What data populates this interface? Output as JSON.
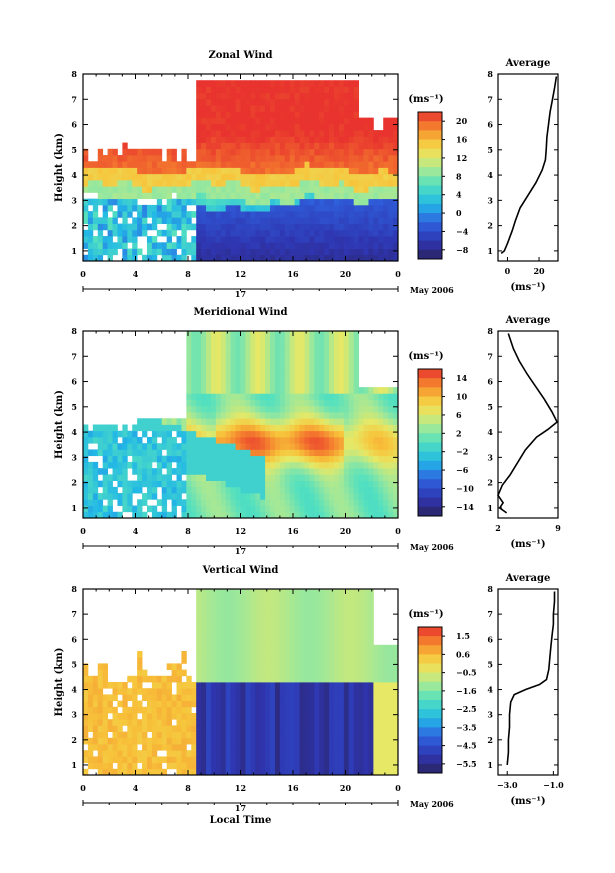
{
  "chart_data": [
    {
      "type": "heatmap",
      "title": "Zonal Wind",
      "ylabel": "Height (km)",
      "xlabel": "",
      "x_ticks": [
        "0",
        "4",
        "8",
        "12",
        "16",
        "20",
        "0"
      ],
      "y_ticks": [
        "1",
        "2",
        "3",
        "4",
        "5",
        "6",
        "7",
        "8"
      ],
      "xlim": [
        0,
        24
      ],
      "ylim": [
        0.6,
        8
      ],
      "date_row": {
        "day": "17",
        "month": "May 2006"
      },
      "colorbar": {
        "unit": "(ms⁻¹)",
        "labels": [
          "20",
          "16",
          "12",
          "8",
          "4",
          "0",
          "−4",
          "−8"
        ],
        "range": [
          -10,
          22
        ]
      },
      "average_profile": {
        "title": "Average",
        "xlabel": "(ms⁻¹)",
        "x_ticks": [
          "0",
          "20"
        ],
        "xlim": [
          -6,
          32
        ],
        "heights": [
          0.9,
          1.0,
          1.3,
          1.8,
          2.2,
          2.7,
          3.2,
          3.7,
          4.2,
          4.6,
          5.0,
          5.5,
          6.0,
          6.5,
          7.0,
          7.5,
          7.9
        ],
        "values": [
          -4,
          -2,
          0,
          3,
          5,
          8,
          13,
          18,
          22,
          24,
          24.5,
          25,
          26,
          27,
          28.5,
          30,
          31
        ]
      }
    },
    {
      "type": "heatmap",
      "title": "Meridional Wind",
      "ylabel": "Height (km)",
      "xlabel": "",
      "x_ticks": [
        "0",
        "4",
        "8",
        "12",
        "16",
        "20",
        "0"
      ],
      "y_ticks": [
        "1",
        "2",
        "3",
        "4",
        "5",
        "6",
        "7",
        "8"
      ],
      "xlim": [
        0,
        24
      ],
      "ylim": [
        0.6,
        8
      ],
      "date_row": {
        "day": "17",
        "month": "May 2006"
      },
      "colorbar": {
        "unit": "(ms⁻¹)",
        "labels": [
          "14",
          "10",
          "6",
          "2",
          "−2",
          "−6",
          "−10",
          "−14"
        ],
        "range": [
          -16,
          16
        ]
      },
      "average_profile": {
        "title": "Average",
        "xlabel": "(ms⁻¹)",
        "x_ticks": [
          "2",
          "9"
        ],
        "xlim": [
          2,
          9
        ],
        "heights": [
          0.8,
          1.0,
          1.2,
          1.5,
          1.9,
          2.3,
          2.8,
          3.3,
          3.8,
          4.1,
          4.4,
          4.8,
          5.3,
          5.8,
          6.3,
          6.8,
          7.3,
          7.9
        ],
        "values": [
          3.0,
          2.2,
          2.6,
          2.0,
          2.5,
          3.4,
          4.3,
          5.2,
          6.5,
          7.8,
          8.9,
          8.3,
          7.4,
          6.4,
          5.4,
          4.5,
          3.8,
          3.2
        ]
      }
    },
    {
      "type": "heatmap",
      "title": "Vertical Wind",
      "ylabel": "Height (km)",
      "xlabel": "Local Time",
      "x_ticks": [
        "0",
        "4",
        "8",
        "12",
        "16",
        "20",
        "0"
      ],
      "y_ticks": [
        "1",
        "2",
        "3",
        "4",
        "5",
        "6",
        "7",
        "8"
      ],
      "xlim": [
        0,
        24
      ],
      "ylim": [
        0.6,
        8
      ],
      "date_row": {
        "day": "17",
        "month": "May 2006"
      },
      "colorbar": {
        "unit": "(ms⁻¹)",
        "labels": [
          "1.5",
          "0.6",
          "−0.5",
          "−1.6",
          "−2.5",
          "−3.5",
          "−4.5",
          "−5.5"
        ],
        "range": [
          -6,
          2
        ]
      },
      "average_profile": {
        "title": "Average",
        "xlabel": "(ms⁻¹)",
        "x_ticks": [
          "−3.0",
          "−1.0"
        ],
        "xlim": [
          -3.4,
          -0.8
        ],
        "heights": [
          1.0,
          1.5,
          2.0,
          2.5,
          3.0,
          3.5,
          3.8,
          4.0,
          4.2,
          4.4,
          4.8,
          5.3,
          5.8,
          6.2,
          6.6,
          7.0,
          7.5,
          7.9
        ],
        "values": [
          -3.0,
          -2.95,
          -2.95,
          -2.9,
          -2.9,
          -2.85,
          -2.7,
          -2.2,
          -1.6,
          -1.3,
          -1.2,
          -1.15,
          -1.1,
          -1.05,
          -1.0,
          -1.0,
          -0.95,
          -0.95
        ]
      }
    }
  ]
}
